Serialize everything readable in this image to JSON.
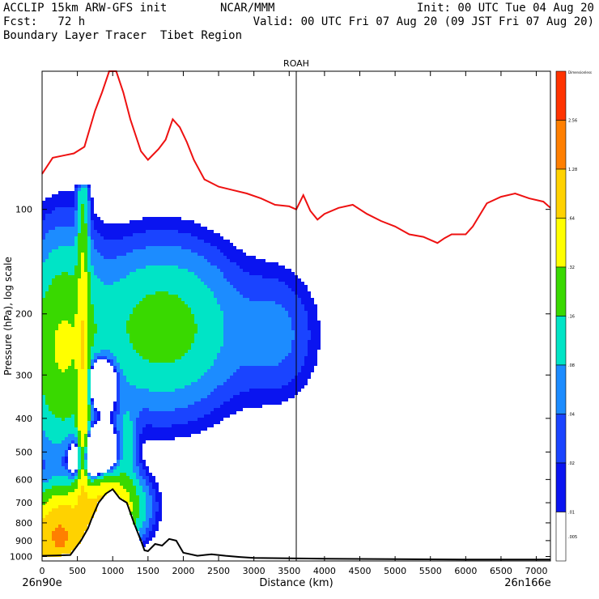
{
  "header": {
    "left_line1": "ACCLIP 15km ARW-GFS init",
    "left_line2": "Fcst:   72 h",
    "left_line3": "Boundary Layer Tracer  Tibet Region",
    "center_line1": "NCAR/MMM",
    "right_line1": "Init: 00 UTC Tue 04 Aug 20",
    "right_line2": "Valid: 00 UTC Fri 07 Aug 20 (09 JST Fri 07 Aug 20)"
  },
  "chart_data": {
    "type": "heatmap",
    "title": "ROAH",
    "xlabel": "Distance (km)",
    "ylabel": "Pressure (hPa), log scale",
    "x_start_label": "26n90e",
    "x_end_label": "26n166e",
    "xlim": [
      0,
      7200
    ],
    "ylim": [
      1030,
      40
    ],
    "y_scale": "log",
    "x_ticks": [
      0,
      500,
      1000,
      1500,
      2000,
      2500,
      3000,
      3500,
      4000,
      4500,
      5000,
      5500,
      6000,
      6500,
      7000
    ],
    "y_ticks": [
      100,
      200,
      300,
      400,
      500,
      600,
      700,
      800,
      900,
      1000
    ],
    "marker_line_x": 3600,
    "colorbar": {
      "label": "Dimensionless",
      "ticks": [
        "2.56",
        "1.28",
        ".64",
        ".32",
        ".16",
        ".08",
        ".04",
        ".02",
        ".01",
        ".005"
      ],
      "colors": [
        "#ff3300",
        "#ff7f00",
        "#ffd200",
        "#ffff00",
        "#39d900",
        "#00e4c6",
        "#1c8cff",
        "#1a44ff",
        "#0a14f0",
        "#ffffff"
      ]
    },
    "tropopause": {
      "name": "",
      "color": "#ee1111",
      "x": [
        0,
        150,
        300,
        450,
        600,
        750,
        850,
        950,
        1050,
        1150,
        1250,
        1400,
        1500,
        1650,
        1750,
        1850,
        1950,
        2050,
        2150,
        2300,
        2500,
        2700,
        2900,
        3100,
        3300,
        3500,
        3600,
        3700,
        3800,
        3900,
        4000,
        4200,
        4400,
        4600,
        4800,
        5000,
        5200,
        5400,
        5600,
        5700,
        5800,
        6000,
        6100,
        6300,
        6500,
        6700,
        6900,
        7100,
        7200
      ],
      "y": [
        79,
        71,
        70,
        69,
        66,
        52,
        46,
        40,
        40,
        46,
        55,
        68,
        72,
        67,
        63,
        55,
        58,
        64,
        72,
        82,
        86,
        88,
        90,
        93,
        97,
        98,
        100,
        91,
        101,
        107,
        103,
        99,
        97,
        103,
        108,
        112,
        118,
        120,
        125,
        121,
        118,
        118,
        112,
        96,
        92,
        90,
        93,
        95,
        99
      ]
    },
    "terrain": {
      "name": "",
      "color": "#000000",
      "x": [
        0,
        200,
        400,
        550,
        650,
        700,
        800,
        900,
        1000,
        1100,
        1200,
        1300,
        1400,
        1450,
        1500,
        1600,
        1700,
        1800,
        1900,
        2000,
        2200,
        2400,
        2600,
        2800,
        3000,
        3500,
        4000,
        5000,
        6000,
        7200
      ],
      "y": [
        995,
        993,
        990,
        900,
        830,
        780,
        700,
        660,
        640,
        680,
        700,
        800,
        900,
        960,
        965,
        920,
        930,
        890,
        900,
        975,
        995,
        985,
        995,
        1003,
        1010,
        1012,
        1015,
        1018,
        1020,
        1020
      ]
    }
  }
}
